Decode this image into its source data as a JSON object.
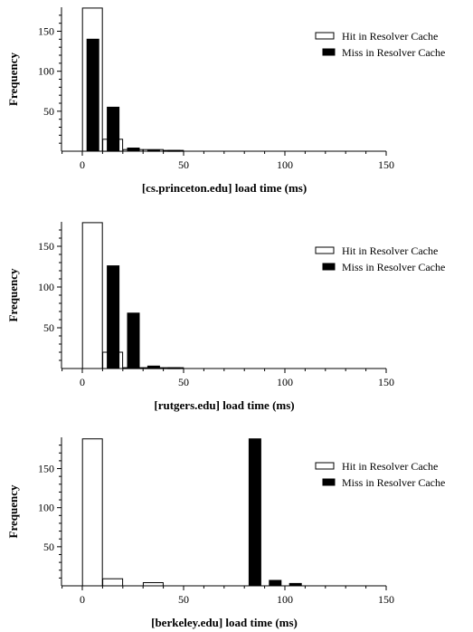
{
  "chart_data": [
    {
      "type": "bar",
      "xlabel": "[cs.princeton.edu] load time (ms)",
      "ylabel": "Frequency",
      "xlim": [
        -10,
        150
      ],
      "ylim": [
        0,
        180
      ],
      "xticks": [
        0,
        50,
        100,
        150
      ],
      "yticks": [
        50,
        100,
        150
      ],
      "legend_position": "top-right",
      "series": [
        {
          "name": "Hit in Resolver Cache",
          "color": "#ffffff",
          "x": [
            5,
            15,
            25,
            35,
            45
          ],
          "values": [
            179,
            15,
            2,
            2,
            1
          ]
        },
        {
          "name": "Miss in Resolver Cache",
          "color": "#000000",
          "x": [
            5,
            15,
            25,
            35,
            45
          ],
          "values": [
            140,
            55,
            4,
            1,
            1
          ]
        }
      ]
    },
    {
      "type": "bar",
      "xlabel": "[rutgers.edu] load time (ms)",
      "ylabel": "Frequency",
      "xlim": [
        -10,
        150
      ],
      "ylim": [
        0,
        180
      ],
      "xticks": [
        0,
        50,
        100,
        150
      ],
      "yticks": [
        50,
        100,
        150
      ],
      "legend_position": "top-right",
      "series": [
        {
          "name": "Hit in Resolver Cache",
          "color": "#ffffff",
          "x": [
            5,
            15,
            25,
            35,
            45
          ],
          "values": [
            179,
            20,
            1,
            1,
            1
          ]
        },
        {
          "name": "Miss in Resolver Cache",
          "color": "#000000",
          "x": [
            5,
            15,
            25,
            35,
            45
          ],
          "values": [
            0,
            126,
            68,
            3,
            1
          ]
        }
      ]
    },
    {
      "type": "bar",
      "xlabel": "[berkeley.edu] load time (ms)",
      "ylabel": "Frequency",
      "xlim": [
        -10,
        150
      ],
      "ylim": [
        0,
        190
      ],
      "xticks": [
        0,
        50,
        100,
        150
      ],
      "yticks": [
        50,
        100,
        150
      ],
      "legend_position": "top-right",
      "series": [
        {
          "name": "Hit in Resolver Cache",
          "color": "#ffffff",
          "x": [
            5,
            15,
            35
          ],
          "values": [
            188,
            9,
            4
          ]
        },
        {
          "name": "Miss in Resolver Cache",
          "color": "#000000",
          "x": [
            85,
            95,
            105
          ],
          "values": [
            188,
            7,
            3
          ]
        }
      ]
    }
  ]
}
